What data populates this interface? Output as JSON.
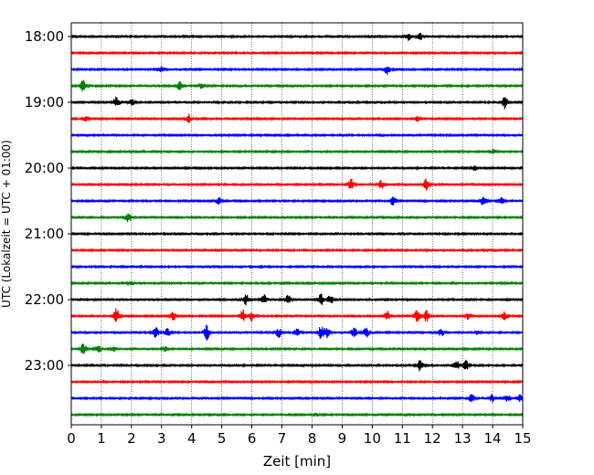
{
  "chart_data": {
    "type": "line",
    "title": "",
    "xlabel": "Zeit  [min]",
    "ylabel": "UTC (Lokalzeit = UTC + 01:00)",
    "xlim": [
      0,
      15
    ],
    "x_ticks": [
      0,
      1,
      2,
      3,
      4,
      5,
      6,
      7,
      8,
      9,
      10,
      11,
      12,
      13,
      14,
      15
    ],
    "x_grid": "dotted vertical lines at each minute",
    "y_tick_labels": [
      "18:00",
      "19:00",
      "20:00",
      "21:00",
      "22:00",
      "23:00"
    ],
    "trace_interval_minutes": 15,
    "traces_start": "18:00",
    "trace_colors": [
      "#000000",
      "#ff0000",
      "#0000ff",
      "#008000"
    ],
    "series": [
      {
        "start": "18:00",
        "bursts": [
          {
            "x": 11.2,
            "amp": 0.25
          },
          {
            "x": 11.6,
            "amp": 0.2
          }
        ]
      },
      {
        "start": "18:15",
        "bursts": []
      },
      {
        "start": "18:30",
        "bursts": [
          {
            "x": 3.0,
            "amp": 0.15
          },
          {
            "x": 10.5,
            "amp": 0.3
          }
        ]
      },
      {
        "start": "18:45",
        "bursts": [
          {
            "x": 0.4,
            "amp": 0.35
          },
          {
            "x": 3.6,
            "amp": 0.3
          },
          {
            "x": 4.3,
            "amp": 0.15
          }
        ]
      },
      {
        "start": "19:00",
        "bursts": [
          {
            "x": 1.5,
            "amp": 0.35
          },
          {
            "x": 2.0,
            "amp": 0.2
          },
          {
            "x": 14.4,
            "amp": 0.45
          }
        ]
      },
      {
        "start": "19:15",
        "bursts": [
          {
            "x": 0.5,
            "amp": 0.15
          },
          {
            "x": 3.9,
            "amp": 0.3
          },
          {
            "x": 11.5,
            "amp": 0.15
          }
        ]
      },
      {
        "start": "19:30",
        "bursts": []
      },
      {
        "start": "19:45",
        "bursts": [
          {
            "x": 14.0,
            "amp": 0.15
          }
        ]
      },
      {
        "start": "20:00",
        "bursts": [
          {
            "x": 13.4,
            "amp": 0.15
          }
        ]
      },
      {
        "start": "20:15",
        "bursts": [
          {
            "x": 9.3,
            "amp": 0.35
          },
          {
            "x": 10.3,
            "amp": 0.25
          },
          {
            "x": 11.8,
            "amp": 0.35
          }
        ]
      },
      {
        "start": "20:30",
        "bursts": [
          {
            "x": 4.9,
            "amp": 0.25
          },
          {
            "x": 10.7,
            "amp": 0.3
          },
          {
            "x": 13.7,
            "amp": 0.3
          },
          {
            "x": 14.3,
            "amp": 0.2
          }
        ]
      },
      {
        "start": "20:45",
        "bursts": [
          {
            "x": 1.9,
            "amp": 0.35
          }
        ]
      },
      {
        "start": "21:00",
        "bursts": []
      },
      {
        "start": "21:15",
        "bursts": []
      },
      {
        "start": "21:30",
        "bursts": []
      },
      {
        "start": "21:45",
        "bursts": [
          {
            "x": 2.0,
            "amp": 0.12
          }
        ]
      },
      {
        "start": "22:00",
        "bursts": [
          {
            "x": 5.8,
            "amp": 0.35
          },
          {
            "x": 6.4,
            "amp": 0.3
          },
          {
            "x": 7.2,
            "amp": 0.3
          },
          {
            "x": 8.3,
            "amp": 0.35
          },
          {
            "x": 8.6,
            "amp": 0.3
          }
        ]
      },
      {
        "start": "22:15",
        "bursts": [
          {
            "x": 1.5,
            "amp": 0.45
          },
          {
            "x": 3.4,
            "amp": 0.3
          },
          {
            "x": 5.7,
            "amp": 0.4
          },
          {
            "x": 6.0,
            "amp": 0.3
          },
          {
            "x": 10.5,
            "amp": 0.3
          },
          {
            "x": 11.5,
            "amp": 0.4
          },
          {
            "x": 11.8,
            "amp": 0.35
          },
          {
            "x": 13.2,
            "amp": 0.2
          },
          {
            "x": 14.4,
            "amp": 0.3
          }
        ]
      },
      {
        "start": "22:30",
        "bursts": [
          {
            "x": 2.8,
            "amp": 0.4
          },
          {
            "x": 3.2,
            "amp": 0.25
          },
          {
            "x": 4.5,
            "amp": 0.45
          },
          {
            "x": 6.9,
            "amp": 0.3
          },
          {
            "x": 7.5,
            "amp": 0.25
          },
          {
            "x": 8.3,
            "amp": 0.4
          },
          {
            "x": 8.5,
            "amp": 0.35
          },
          {
            "x": 9.4,
            "amp": 0.35
          },
          {
            "x": 9.8,
            "amp": 0.3
          },
          {
            "x": 12.3,
            "amp": 0.25
          },
          {
            "x": 13.5,
            "amp": 0.15
          }
        ]
      },
      {
        "start": "22:45",
        "bursts": [
          {
            "x": 0.4,
            "amp": 0.35
          },
          {
            "x": 0.9,
            "amp": 0.2
          },
          {
            "x": 1.4,
            "amp": 0.12
          },
          {
            "x": 3.1,
            "amp": 0.15
          }
        ]
      },
      {
        "start": "23:00",
        "bursts": [
          {
            "x": 11.6,
            "amp": 0.35
          },
          {
            "x": 12.8,
            "amp": 0.3
          },
          {
            "x": 13.1,
            "amp": 0.35
          }
        ]
      },
      {
        "start": "23:15",
        "bursts": []
      },
      {
        "start": "23:30",
        "bursts": [
          {
            "x": 13.3,
            "amp": 0.25
          },
          {
            "x": 14.0,
            "amp": 0.25
          },
          {
            "x": 14.5,
            "amp": 0.2
          },
          {
            "x": 14.9,
            "amp": 0.2
          }
        ]
      },
      {
        "start": "23:45",
        "bursts": [
          {
            "x": 8.2,
            "amp": 0.1
          }
        ]
      }
    ]
  }
}
